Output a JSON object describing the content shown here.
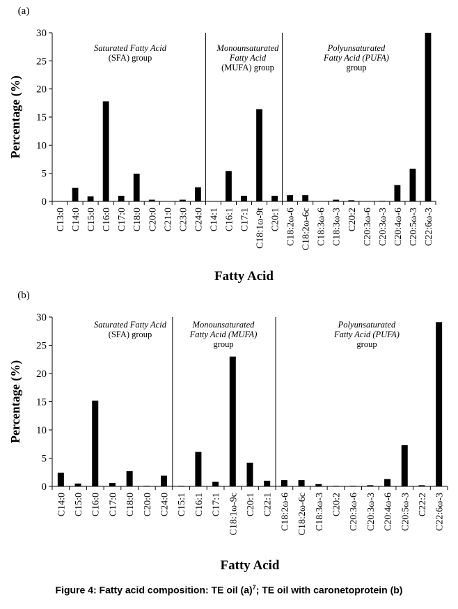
{
  "chart_data": [
    {
      "type": "bar",
      "panel_label": "(a)",
      "ylabel": "Percentage (%)",
      "xlabel": "Fatty Acid",
      "ylim": [
        0,
        30
      ],
      "yticks": [
        "0",
        "5",
        "10",
        "15",
        "20",
        "25",
        "30"
      ],
      "grid": false,
      "bar_color": "#000000",
      "categories": [
        "C13:0",
        "C14:0",
        "C15:0",
        "C16:0",
        "C17:0",
        "C18:0",
        "C20:0",
        "C21:0",
        "C23:0",
        "C24:0",
        "C14:1",
        "C16:1",
        "C17:1",
        "C18:1ω-9t",
        "C20:1",
        "C18:2ω-6",
        "C18:2ω-6c",
        "C18:3ω-6",
        "C18:3ω-3",
        "C20:2",
        "C20:3ω-6",
        "C20:3ω-3",
        "C20:4ω-6",
        "C20:5ω-3",
        "C22:6ω-3"
      ],
      "values": [
        0,
        2.4,
        0.9,
        17.8,
        1.0,
        4.9,
        0.3,
        0,
        0.3,
        2.5,
        0,
        5.4,
        1.0,
        16.4,
        1.0,
        1.1,
        1.1,
        0,
        0.3,
        0.2,
        0,
        0.1,
        2.9,
        5.8,
        30
      ],
      "groups": [
        {
          "lines": [
            {
              "text": "Saturated Fatty Acid",
              "italic": true
            },
            {
              "text": "(SFA) group",
              "italic": false
            }
          ]
        },
        {
          "lines": [
            {
              "text": "Monounsaturated",
              "italic": true
            },
            {
              "text": "Fatty Acid",
              "italic": true
            },
            {
              "text": "(MUFA) group",
              "italic": false
            }
          ]
        },
        {
          "lines": [
            {
              "text": "Polyunsaturated",
              "italic": true
            },
            {
              "text": "Fatty Acid (PUFA)",
              "italic": true
            },
            {
              "text": "group",
              "italic": false
            }
          ]
        }
      ]
    },
    {
      "type": "bar",
      "panel_label": "(b)",
      "ylabel": "Percentage (%)",
      "xlabel": "Fatty Acid",
      "ylim": [
        0,
        30
      ],
      "yticks": [
        "0",
        "5",
        "10",
        "15",
        "20",
        "25",
        "30"
      ],
      "grid": false,
      "bar_color": "#000000",
      "categories": [
        "C14:0",
        "C15:0",
        "C16:0",
        "C17:0",
        "C18:0",
        "C20:0",
        "C24:0",
        "C15:1",
        "C16:1",
        "C17:1",
        "C18:1ω-9c",
        "C20:1",
        "C22:1",
        "C18:2ω-6",
        "C18:2ω-6c",
        "C18:3ω-3",
        "C20:2",
        "C20:3ω-6",
        "C20:3ω-3",
        "C20:4ω-6",
        "C20:5ω-3",
        "C22:2",
        "C22:6ω-3"
      ],
      "values": [
        2.4,
        0.5,
        15.2,
        0.6,
        2.7,
        0.1,
        1.9,
        0.1,
        6.1,
        0.8,
        23.0,
        4.2,
        1.0,
        1.1,
        1.1,
        0.4,
        0.1,
        0.1,
        0.2,
        1.3,
        7.3,
        0.2,
        29.1
      ],
      "groups": [
        {
          "lines": [
            {
              "text": "Saturated Fatty Acid",
              "italic": true
            },
            {
              "text": "(SFA) group",
              "italic": false
            }
          ]
        },
        {
          "lines": [
            {
              "text": "Monounsaturated",
              "italic": true
            },
            {
              "text": "Fatty Acid (MUFA)",
              "italic": true
            },
            {
              "text": "group",
              "italic": false
            }
          ]
        },
        {
          "lines": [
            {
              "text": "Polyunsaturated",
              "italic": true
            },
            {
              "text": "Fatty Acid (PUFA)",
              "italic": true
            },
            {
              "text": "group",
              "italic": false
            }
          ]
        }
      ]
    }
  ],
  "caption": {
    "main": "Figure 4: Fatty acid composition: TE oil (a)",
    "sup": "7",
    "rest": "; TE oil with caronetoprotein (b)"
  }
}
